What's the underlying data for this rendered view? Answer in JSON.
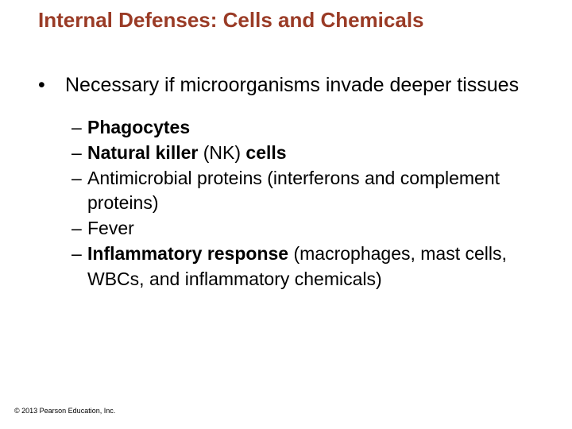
{
  "title": {
    "text": "Internal Defenses: Cells and Chemicals",
    "color": "#9a3b26",
    "fontsize": 26,
    "fontweight": "bold"
  },
  "body": {
    "color": "#000000",
    "level1_fontsize": 25,
    "level2_fontsize": 23,
    "level1_bullet": "•",
    "level2_bullet": "–",
    "point": {
      "text": "Necessary if microorganisms invade deeper tissues",
      "subpoints": [
        {
          "segments": [
            {
              "text": "Phagocytes",
              "bold": true
            }
          ]
        },
        {
          "segments": [
            {
              "text": "Natural killer ",
              "bold": true
            },
            {
              "text": "(NK) ",
              "bold": false
            },
            {
              "text": "cells",
              "bold": true
            }
          ]
        },
        {
          "segments": [
            {
              "text": "Antimicrobial proteins (interferons and complement proteins)",
              "bold": false
            }
          ]
        },
        {
          "segments": [
            {
              "text": "Fever",
              "bold": false
            }
          ]
        },
        {
          "segments": [
            {
              "text": "Inflammatory response ",
              "bold": true
            },
            {
              "text": "(macrophages, mast cells, WBCs, and inflammatory chemicals)",
              "bold": false
            }
          ]
        }
      ]
    }
  },
  "copyright": {
    "text": "© 2013 Pearson Education, Inc.",
    "fontsize": 9,
    "color": "#000000"
  },
  "background_color": "#ffffff"
}
